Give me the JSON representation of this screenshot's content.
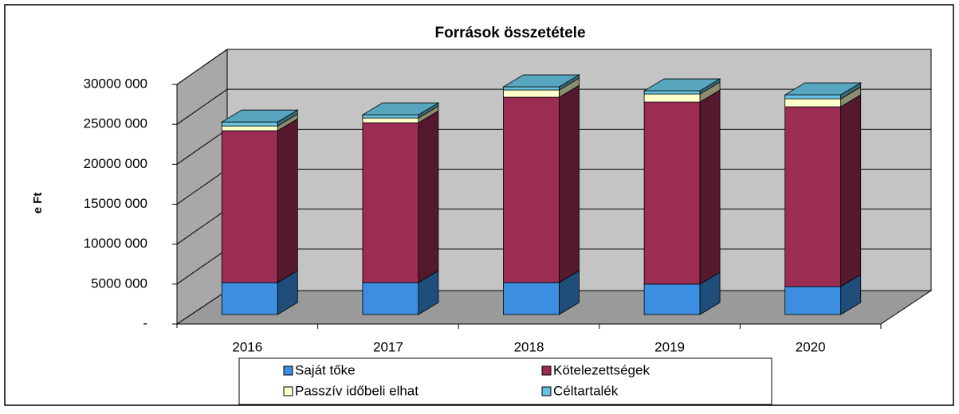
{
  "chart_data": {
    "type": "bar3d_stacked",
    "title": "Források összetétele",
    "y_label": "e Ft",
    "categories": [
      "2016",
      "2017",
      "2018",
      "2019",
      "2020"
    ],
    "series": [
      {
        "name": "Saját tőke",
        "color": "#3b8ee0",
        "values": [
          4000000,
          4000000,
          4000000,
          3800000,
          3500000
        ]
      },
      {
        "name": "Kötelezettségek",
        "color": "#9b2d55",
        "values": [
          19000000,
          20000000,
          23200000,
          22800000,
          22500000
        ]
      },
      {
        "name": "Passzív időbeli elhat",
        "color": "#ffffcc",
        "values": [
          600000,
          600000,
          900000,
          1000000,
          1000000
        ]
      },
      {
        "name": "Céltartalék",
        "color": "#66c2e0",
        "values": [
          500000,
          400000,
          400000,
          400000,
          500000
        ]
      }
    ],
    "ylim": [
      0,
      30000000
    ],
    "yticks": [
      {
        "value": 0,
        "label": "-"
      },
      {
        "value": 5000000,
        "label": "5000 000"
      },
      {
        "value": 10000000,
        "label": "10000 000"
      },
      {
        "value": 15000000,
        "label": "15000 000"
      },
      {
        "value": 20000000,
        "label": "20000 000"
      },
      {
        "value": 25000000,
        "label": "25000 000"
      },
      {
        "value": 30000000,
        "label": "30000 000"
      }
    ],
    "grid": true
  }
}
